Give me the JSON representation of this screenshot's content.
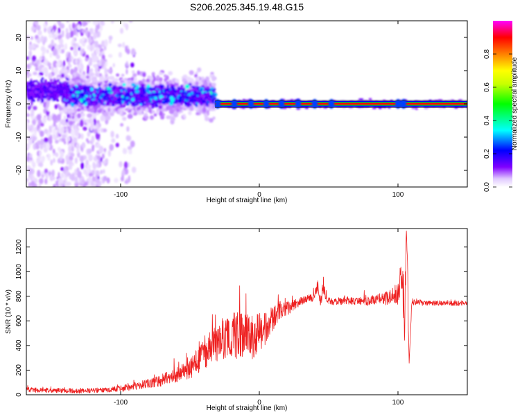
{
  "title": "S206.2025.345.19.48.G15",
  "chart_data": [
    {
      "type": "heatmap",
      "xlabel": "Height of straight line (km)",
      "ylabel": "Frequency (Hz)",
      "xlim": [
        -168,
        150
      ],
      "ylim": [
        -25,
        25
      ],
      "xticks": [
        -100,
        0,
        100
      ],
      "yticks": [
        -20,
        -10,
        0,
        10,
        20
      ],
      "colorbar": {
        "label": "Normalized spectral amplitude",
        "range": [
          0,
          1
        ],
        "ticks": [
          0.0,
          0.2,
          0.4,
          0.6,
          0.8
        ],
        "colors": [
          "#ffffff",
          "#c8a0ff",
          "#7f00ff",
          "#0000ff",
          "#00ffff",
          "#00ff00",
          "#ffff00",
          "#ff8000",
          "#ff0000",
          "#ff00ff"
        ]
      },
      "features": [
        {
          "description_scope": "broadband scatter",
          "x_range": [
            -168,
            -110
          ],
          "freq_range": [
            -25,
            25
          ],
          "amplitude": 0.05
        },
        {
          "description_scope": "band",
          "x_range": [
            -140,
            -32
          ],
          "freq_range": [
            -3,
            8
          ],
          "amplitude": 0.2
        },
        {
          "description_scope": "narrow line",
          "x_range": [
            -32,
            150
          ],
          "freq_range": [
            -0.6,
            0.6
          ],
          "amplitude": 0.95
        }
      ]
    },
    {
      "type": "line",
      "xlabel": "Height of straight line (km)",
      "ylabel": "SNR (10 * v/v)",
      "xlim": [
        -168,
        150
      ],
      "ylim": [
        0,
        1350
      ],
      "xticks": [
        -100,
        0,
        100
      ],
      "yticks": [
        0,
        200,
        400,
        600,
        800,
        1000,
        1200
      ],
      "series": [
        {
          "color": "#ee2020",
          "x": [
            -168,
            -150,
            -130,
            -110,
            -100,
            -90,
            -80,
            -70,
            -60,
            -50,
            -45,
            -40,
            -35,
            -30,
            -25,
            -20,
            -15,
            -10,
            -5,
            0,
            5,
            10,
            15,
            20,
            25,
            30,
            35,
            40,
            42,
            44,
            46,
            50,
            60,
            70,
            80,
            85,
            90,
            95,
            100,
            103,
            105,
            106,
            107,
            108,
            110,
            120,
            130,
            140,
            150
          ],
          "y": [
            40,
            35,
            30,
            40,
            50,
            70,
            90,
            120,
            160,
            210,
            260,
            330,
            380,
            420,
            450,
            480,
            490,
            480,
            470,
            500,
            560,
            620,
            680,
            700,
            740,
            760,
            780,
            800,
            900,
            760,
            860,
            760,
            760,
            760,
            760,
            780,
            780,
            800,
            820,
            1000,
            600,
            1330,
            900,
            240,
            760,
            740,
            745,
            740,
            745
          ],
          "noise": [
            20,
            20,
            20,
            20,
            25,
            30,
            40,
            50,
            60,
            80,
            100,
            120,
            140,
            150,
            160,
            180,
            200,
            200,
            180,
            160,
            140,
            100,
            80,
            60,
            50,
            40,
            30,
            40,
            60,
            60,
            60,
            30,
            30,
            30,
            40,
            40,
            50,
            70,
            100,
            150,
            300,
            0,
            300,
            0,
            30,
            20,
            20,
            20,
            20
          ]
        }
      ]
    }
  ]
}
